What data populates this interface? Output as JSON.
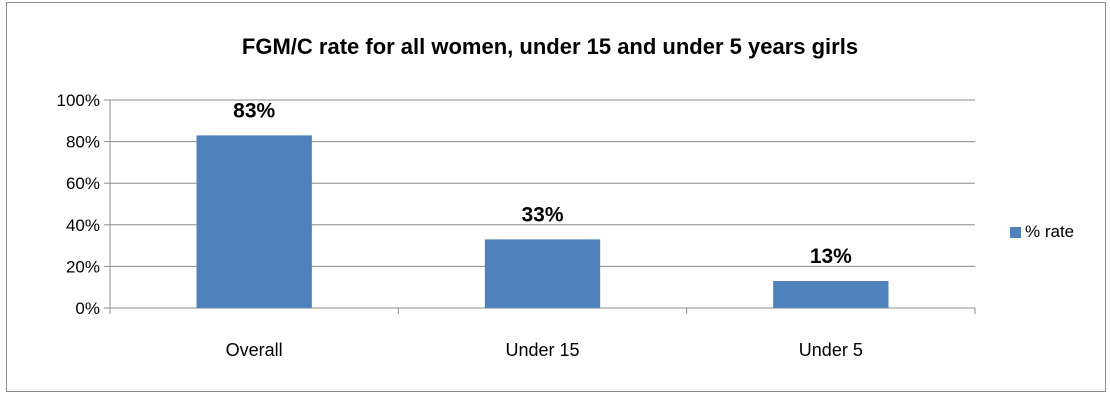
{
  "chart_data": {
    "type": "bar",
    "title": "FGM/C rate for all women, under 15 and under 5 years girls",
    "categories": [
      "Overall",
      "Under 15",
      "Under 5"
    ],
    "series": [
      {
        "name": "% rate",
        "values": [
          83,
          33,
          13
        ],
        "data_labels": [
          "83%",
          "33%",
          "13%"
        ],
        "color": "#4f81bd"
      }
    ],
    "xlabel": "",
    "ylabel": "",
    "ylim": [
      0,
      100
    ],
    "y_ticks": [
      0,
      20,
      40,
      60,
      80,
      100
    ],
    "y_tick_labels": [
      "0%",
      "20%",
      "40%",
      "60%",
      "80%",
      "100%"
    ],
    "grid": true,
    "legend_position": "right"
  },
  "colors": {
    "bar": "#4f81bd",
    "grid": "#8c8c8c",
    "axis": "#8c8c8c"
  }
}
